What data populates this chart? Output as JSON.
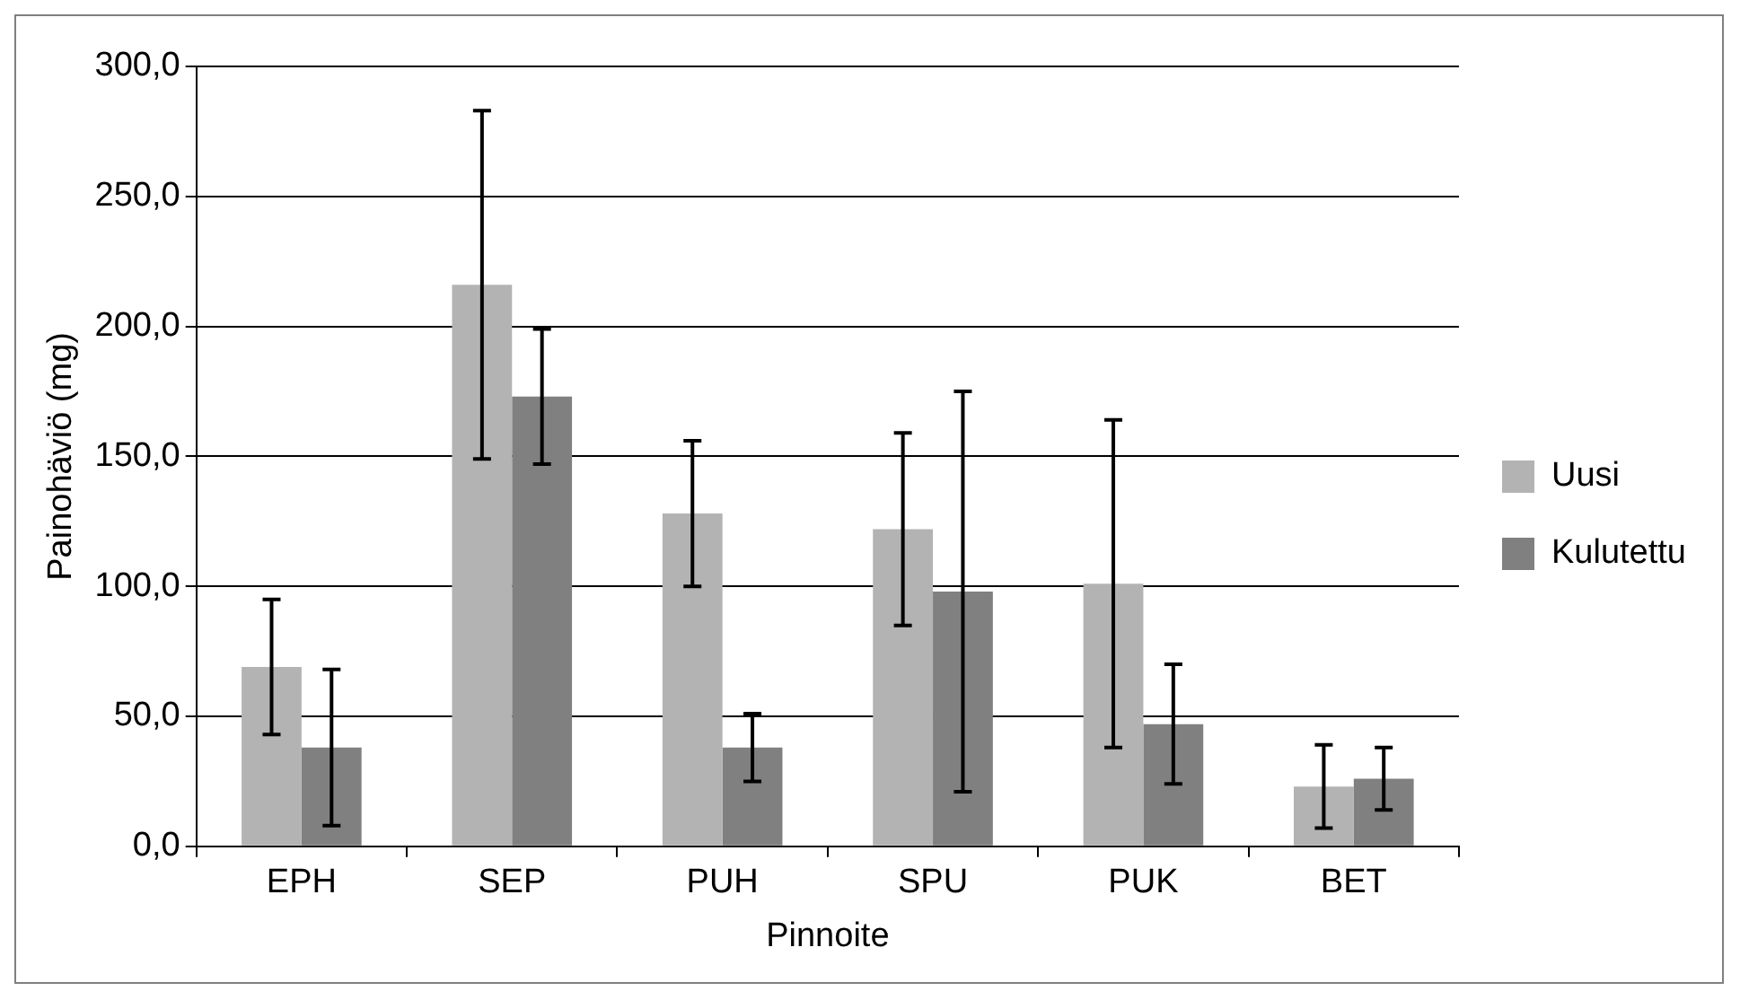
{
  "chart_data": {
    "type": "bar",
    "xlabel": "Pinnoite",
    "ylabel": "Painohäviö (mg)",
    "categories": [
      "EPH",
      "SEP",
      "PUH",
      "SPU",
      "PUK",
      "BET"
    ],
    "series": [
      {
        "name": "Uusi",
        "color": "#b3b3b3",
        "values": [
          69,
          216,
          128,
          122,
          101,
          23
        ],
        "errors": [
          26,
          67,
          28,
          37,
          63,
          16
        ]
      },
      {
        "name": "Kulutettu",
        "color": "#808080",
        "values": [
          38,
          173,
          38,
          98,
          47,
          26
        ],
        "errors": [
          30,
          26,
          13,
          77,
          23,
          12
        ]
      }
    ],
    "ylim": [
      0,
      300
    ],
    "yticks": [
      {
        "value": 0,
        "label": "0,0"
      },
      {
        "value": 50,
        "label": "50,0"
      },
      {
        "value": 100,
        "label": "100,0"
      },
      {
        "value": 150,
        "label": "150,0"
      },
      {
        "value": 200,
        "label": "200,0"
      },
      {
        "value": 250,
        "label": "250,0"
      },
      {
        "value": 300,
        "label": "300,0"
      }
    ],
    "grid": "y",
    "legend": "right"
  }
}
